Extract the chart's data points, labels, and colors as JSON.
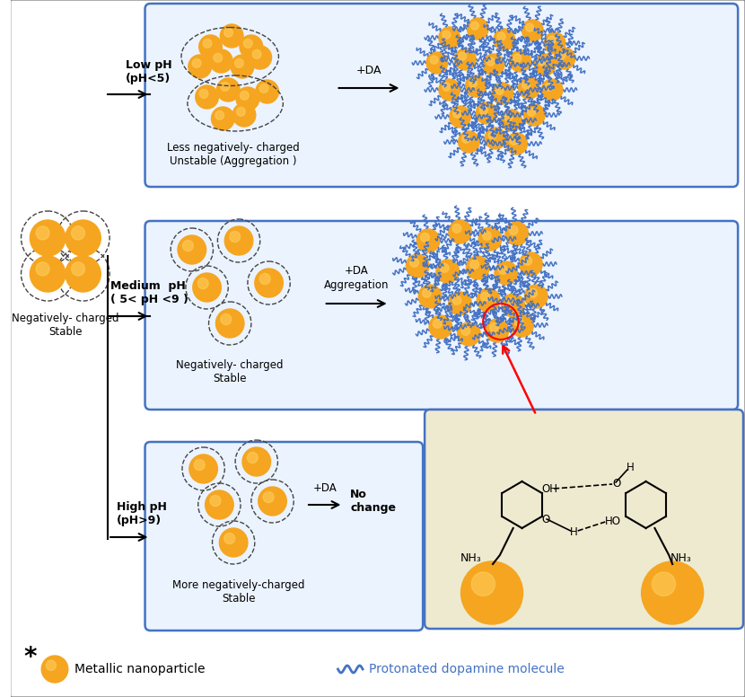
{
  "bg_color": "#ffffff",
  "orange_color": "#F5A520",
  "blue_wave_color": "#4472C4",
  "box_border_color": "#4472C4",
  "box_fill": "#EBF3FF",
  "chem_box_fill": "#EEEAD0",
  "dashed_color": "#444444",
  "red_color": "#CC0000",
  "label_low_ph": "Low pH\n(pH<5)",
  "label_med_ph": "Medium  pH\n( 5< pH <9 )",
  "label_high_ph": "High pH\n(pH>9)",
  "label_neg_charged": "Negatively- charged\nStable",
  "label_less_neg": "Less negatively- charged\nUnstable (Aggregation )",
  "label_neg_charged2": "Negatively- charged\nStable",
  "label_more_neg": "More negatively-charged\nStable",
  "label_plus_da1": "+DA",
  "label_plus_da2": "+DA\nAggregation",
  "label_plus_da3": "+DA",
  "label_no_change": "No\nchange",
  "legend_star": "*",
  "legend_metallic": "Metallic nanoparticle",
  "legend_protonated": "Protonated dopamine molecule"
}
